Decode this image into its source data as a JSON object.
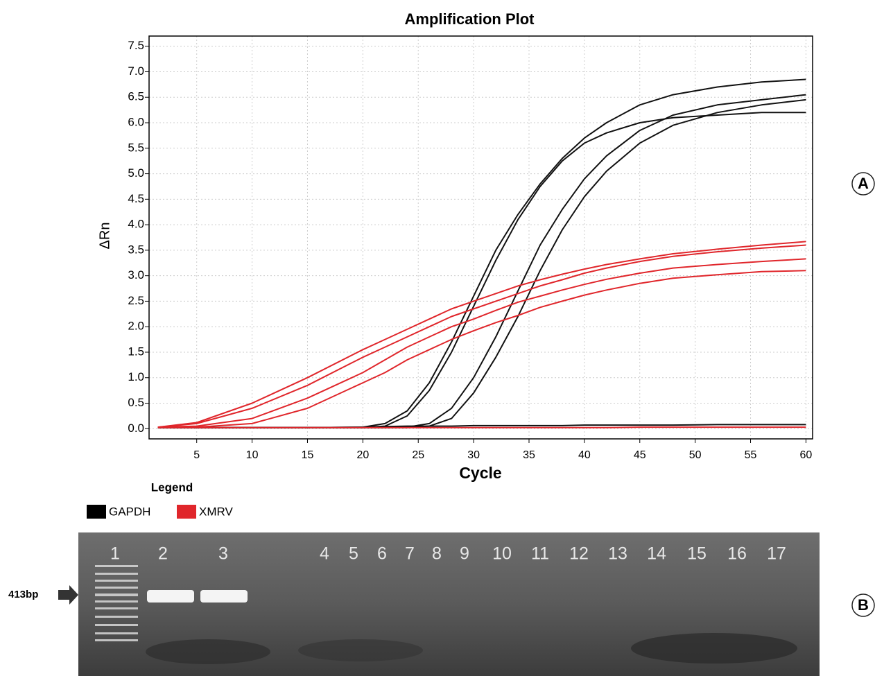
{
  "chart_data": {
    "type": "line",
    "title": "Amplification Plot",
    "xlabel": "Cycle",
    "ylabel": "ΔRn",
    "x": [
      1.5,
      5,
      10,
      15,
      20,
      22,
      24,
      26,
      28,
      30,
      32,
      34,
      36,
      38,
      40,
      42,
      45,
      48,
      52,
      56,
      60
    ],
    "series": [
      {
        "color": "#111111",
        "values": [
          0.02,
          0.02,
          0.02,
          0.02,
          0.03,
          0.1,
          0.35,
          0.9,
          1.7,
          2.6,
          3.5,
          4.2,
          4.8,
          5.3,
          5.7,
          6.0,
          6.35,
          6.55,
          6.7,
          6.8,
          6.85
        ]
      },
      {
        "color": "#111111",
        "values": [
          0.02,
          0.02,
          0.02,
          0.02,
          0.02,
          0.05,
          0.25,
          0.75,
          1.5,
          2.4,
          3.3,
          4.1,
          4.75,
          5.25,
          5.6,
          5.8,
          6.0,
          6.1,
          6.15,
          6.2,
          6.2
        ]
      },
      {
        "color": "#111111",
        "values": [
          0.02,
          0.02,
          0.02,
          0.02,
          0.02,
          0.02,
          0.03,
          0.1,
          0.4,
          1.0,
          1.8,
          2.7,
          3.6,
          4.3,
          4.9,
          5.35,
          5.85,
          6.15,
          6.35,
          6.45,
          6.55
        ]
      },
      {
        "color": "#111111",
        "values": [
          0.02,
          0.02,
          0.02,
          0.02,
          0.02,
          0.02,
          0.02,
          0.05,
          0.2,
          0.7,
          1.4,
          2.2,
          3.1,
          3.9,
          4.55,
          5.05,
          5.6,
          5.95,
          6.2,
          6.35,
          6.45
        ]
      },
      {
        "color": "#111111",
        "values": [
          0.02,
          0.02,
          0.02,
          0.02,
          0.03,
          0.04,
          0.05,
          0.05,
          0.05,
          0.06,
          0.06,
          0.06,
          0.06,
          0.06,
          0.07,
          0.07,
          0.07,
          0.07,
          0.08,
          0.08,
          0.08
        ]
      },
      {
        "color": "#e0262b",
        "values": [
          0.03,
          0.12,
          0.5,
          1.0,
          1.55,
          1.75,
          1.95,
          2.15,
          2.35,
          2.5,
          2.65,
          2.8,
          2.92,
          3.03,
          3.13,
          3.22,
          3.33,
          3.43,
          3.52,
          3.6,
          3.67
        ]
      },
      {
        "color": "#e0262b",
        "values": [
          0.03,
          0.1,
          0.4,
          0.85,
          1.4,
          1.6,
          1.8,
          2.0,
          2.2,
          2.35,
          2.5,
          2.65,
          2.8,
          2.92,
          3.05,
          3.15,
          3.28,
          3.38,
          3.47,
          3.54,
          3.6
        ]
      },
      {
        "color": "#e0262b",
        "values": [
          0.03,
          0.05,
          0.2,
          0.6,
          1.1,
          1.35,
          1.6,
          1.8,
          2.0,
          2.15,
          2.32,
          2.48,
          2.6,
          2.72,
          2.83,
          2.93,
          3.05,
          3.15,
          3.22,
          3.28,
          3.33
        ]
      },
      {
        "color": "#e0262b",
        "values": [
          0.03,
          0.03,
          0.1,
          0.4,
          0.9,
          1.1,
          1.35,
          1.55,
          1.75,
          1.92,
          2.08,
          2.22,
          2.38,
          2.5,
          2.62,
          2.72,
          2.85,
          2.95,
          3.02,
          3.08,
          3.1
        ]
      },
      {
        "color": "#e0262b",
        "values": [
          0.02,
          0.02,
          0.02,
          0.02,
          0.02,
          0.02,
          0.02,
          0.02,
          0.02,
          0.02,
          0.02,
          0.02,
          0.02,
          0.02,
          0.02,
          0.02,
          0.03,
          0.03,
          0.03,
          0.03,
          0.03
        ]
      }
    ],
    "xlim": [
      0.7,
      60.6
    ],
    "ylim": [
      -0.2,
      7.7
    ],
    "xticks": [
      5,
      10,
      15,
      20,
      25,
      30,
      35,
      40,
      45,
      50,
      55,
      60
    ],
    "yticks": [
      {
        "value": 0,
        "label": "0.0"
      },
      0.5,
      {
        "value": 1,
        "label": "1.0"
      },
      1.5,
      {
        "value": 2,
        "label": "2.0"
      },
      2.5,
      {
        "value": 3,
        "label": "3.0"
      },
      3.5,
      {
        "value": 4,
        "label": "4.0"
      },
      4.5,
      {
        "value": 5,
        "label": "5.0"
      },
      5.5,
      {
        "value": 6,
        "label": "6.0"
      },
      6.5,
      {
        "value": 7,
        "label": "7.0"
      },
      7.5
    ],
    "grid": true,
    "legend": {
      "title": "Legend",
      "entries": [
        {
          "name": "GAPDH",
          "color": "#000000"
        },
        {
          "name": "XMRV",
          "color": "#e0262b"
        }
      ]
    }
  },
  "panel_labels": [
    "A",
    "B"
  ],
  "gel": {
    "lanes": [
      "1",
      "2",
      "3",
      "4",
      "5",
      "6",
      "7",
      "8",
      "9",
      "10",
      "11",
      "12",
      "13",
      "14",
      "15",
      "16",
      "17"
    ],
    "marker_label": "413bp"
  }
}
